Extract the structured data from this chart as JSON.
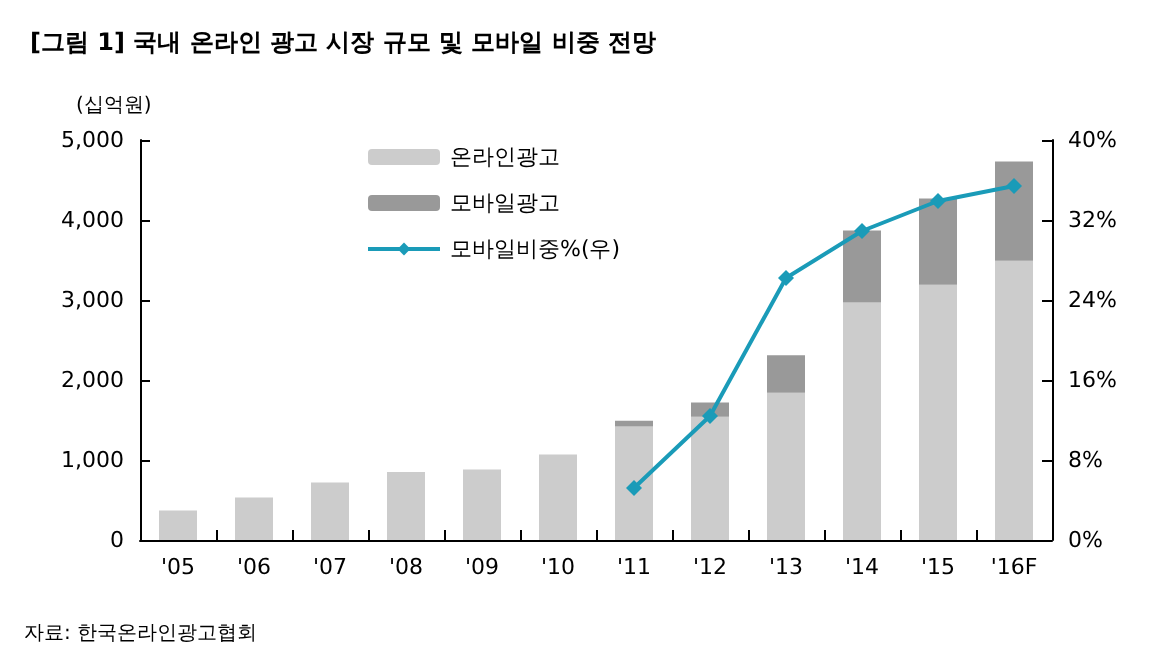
{
  "chart_data": {
    "type": "bar",
    "title": "[그림 1] 국내 온라인 광고 시장 규모 및 모바일 비중 전망",
    "ylabel": "(십억원)",
    "annotations": [
      "자료: 한국온라인광고협회"
    ],
    "categories": [
      "'05",
      "'06",
      "'07",
      "'08",
      "'09",
      "'10",
      "'11",
      "'12",
      "'13",
      "'14",
      "'15",
      "'16F"
    ],
    "stacked": true,
    "legend": "top",
    "grid": false,
    "marker": "diamond",
    "series": [
      {
        "name": "온라인광고",
        "color": "#cccccc",
        "values": [
          370,
          530,
          720,
          850,
          880,
          1070,
          1420,
          1540,
          1840,
          2970,
          3190,
          3490
        ]
      },
      {
        "name": "모바일광고",
        "color": "#999999",
        "values": [
          null,
          null,
          null,
          null,
          null,
          null,
          70,
          180,
          470,
          900,
          1080,
          1240
        ]
      },
      {
        "name": "모바일비중%(우)",
        "type": "line",
        "axis": "y2",
        "color": "#1a9bb8",
        "values": [
          null,
          null,
          null,
          null,
          null,
          null,
          5.2,
          12.4,
          26.2,
          30.9,
          33.9,
          35.4
        ]
      }
    ],
    "ylim": [
      0,
      5000
    ],
    "yticks": [
      {
        "value": 0,
        "label": "0"
      },
      {
        "value": 1000,
        "label": "1,000"
      },
      {
        "value": 2000,
        "label": "2,000"
      },
      {
        "value": 3000,
        "label": "3,000"
      },
      {
        "value": 4000,
        "label": "4,000"
      },
      {
        "value": 5000,
        "label": "5,000"
      }
    ],
    "y2lim": [
      0,
      40
    ],
    "y2ticks": [
      {
        "value": 0,
        "label": "0%"
      },
      {
        "value": 8,
        "label": "8%"
      },
      {
        "value": 16,
        "label": "16%"
      },
      {
        "value": 24,
        "label": "24%"
      },
      {
        "value": 32,
        "label": "32%"
      },
      {
        "value": 40,
        "label": "40%"
      }
    ]
  }
}
